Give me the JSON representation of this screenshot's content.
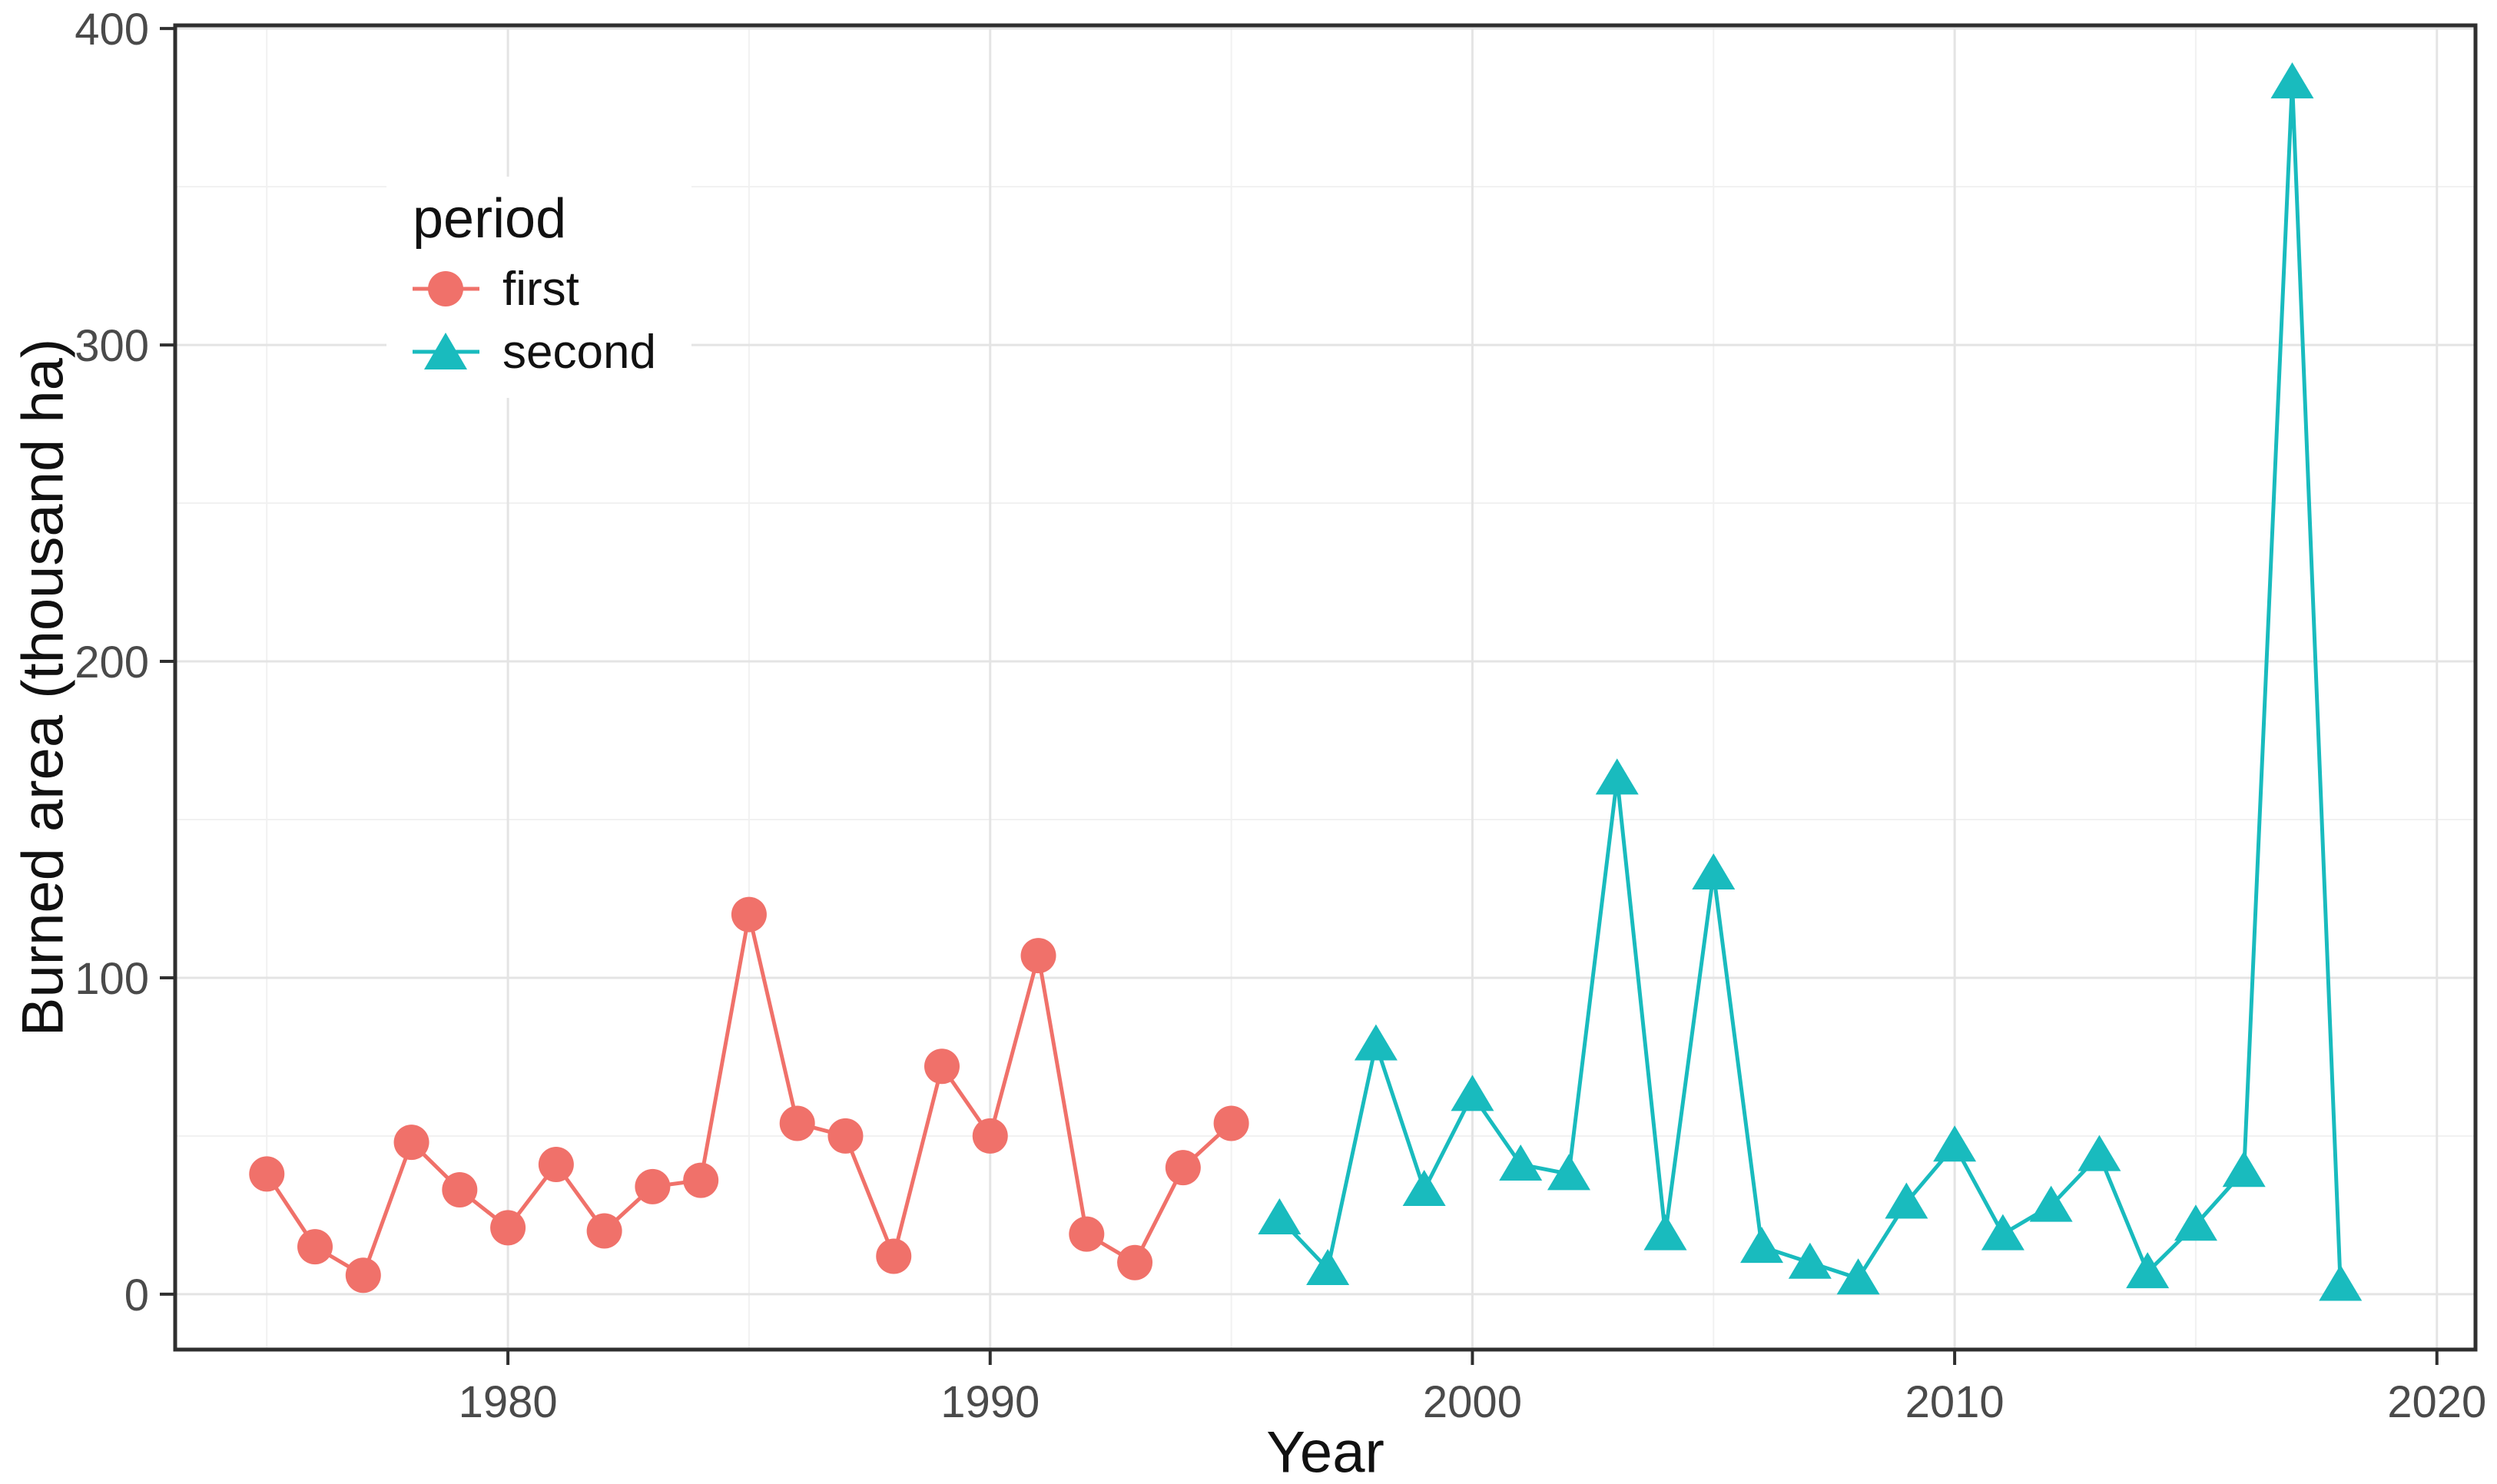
{
  "figure": {
    "background": "#ffffff"
  },
  "chart_data": {
    "type": "line",
    "title": "",
    "xlabel": "Year",
    "ylabel": "Burned area (thousand ha)",
    "xlim": [
      1973.1,
      2020.8
    ],
    "ylim": [
      -17.5,
      401
    ],
    "x_major_ticks": {
      "values": [
        1980,
        1990,
        2000,
        2010,
        2020
      ],
      "labels": [
        "1980",
        "1990",
        "2000",
        "2010",
        "2020"
      ]
    },
    "x_minor_ticks": [
      1975,
      1985,
      1995,
      2005,
      2015
    ],
    "y_major_ticks": {
      "values": [
        0,
        100,
        200,
        300,
        400
      ],
      "labels": [
        "0",
        "100",
        "200",
        "300",
        "400"
      ]
    },
    "y_minor_ticks": [
      50,
      150,
      250,
      350
    ],
    "grid": {
      "show": true,
      "major_color": "#e4e4e4",
      "minor_color": "#f1f1f1"
    },
    "axis": {
      "border_color": "#2f2f2f",
      "tick_color": "#2f2f2f",
      "tick_label_color": "#4a4a4a"
    },
    "legend": {
      "title": "period",
      "position": "inside-top-left",
      "items": [
        {
          "label": "first",
          "marker": "circle",
          "color": "#F0716A"
        },
        {
          "label": "second",
          "marker": "triangle",
          "color": "#19BBBE"
        }
      ]
    },
    "series": [
      {
        "name": "first",
        "marker": "circle",
        "color": "#F0716A",
        "x": [
          1975,
          1976,
          1977,
          1978,
          1979,
          1980,
          1981,
          1982,
          1983,
          1984,
          1985,
          1986,
          1987,
          1988,
          1989,
          1990,
          1991,
          1992,
          1993,
          1994,
          1995
        ],
        "y": [
          38,
          15,
          6,
          48,
          33,
          21,
          41,
          20,
          34,
          36,
          120,
          54,
          50,
          12,
          72,
          50,
          107,
          19,
          10,
          40,
          54
        ]
      },
      {
        "name": "second",
        "marker": "triangle",
        "color": "#19BBBE",
        "x": [
          1996,
          1997,
          1998,
          1999,
          2000,
          2001,
          2002,
          2003,
          2004,
          2005,
          2006,
          2007,
          2008,
          2009,
          2010,
          2011,
          2012,
          2013,
          2014,
          2015,
          2016,
          2017,
          2018
        ],
        "y": [
          24,
          8,
          79,
          33,
          63,
          41,
          38,
          163,
          19,
          133,
          15,
          10,
          5,
          29,
          47,
          19,
          28,
          44,
          7,
          22,
          39,
          383,
          3
        ]
      }
    ]
  }
}
